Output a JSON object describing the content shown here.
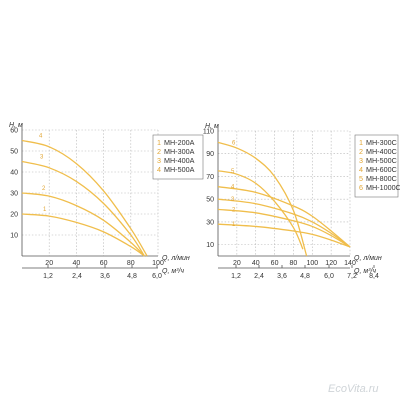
{
  "watermark": "EcoVita.ru",
  "colors": {
    "curve": "#f0be4c",
    "label": "#e2a634",
    "grid": "#b5b5b5",
    "axis": "#555555"
  },
  "chart_data": [
    {
      "type": "line",
      "ylabel": "H, м",
      "xlabel_flow": "Q, л/мин",
      "xlabel_flow_m3": "Q, м³/ч",
      "xlim": [
        0,
        100
      ],
      "ylim": [
        0,
        60
      ],
      "yticks": [
        10,
        20,
        30,
        40,
        50,
        60
      ],
      "xticks_flow": [
        20,
        40,
        60,
        80,
        100
      ],
      "xticks_m3": [
        "1,2",
        "2,4",
        "3,6",
        "4,8",
        "6,0"
      ],
      "legend_position": "right",
      "series": [
        {
          "name": "MH-200A",
          "num": "1",
          "x": [
            0,
            20,
            40,
            60,
            80,
            90
          ],
          "y": [
            20,
            19,
            16,
            11.5,
            4.5,
            0
          ]
        },
        {
          "name": "MH-300A",
          "num": "2",
          "x": [
            0,
            20,
            40,
            60,
            80,
            90
          ],
          "y": [
            30,
            28.5,
            24,
            17,
            6.5,
            0
          ]
        },
        {
          "name": "MH-400A",
          "num": "3",
          "x": [
            0,
            20,
            40,
            60,
            80,
            90
          ],
          "y": [
            45,
            42,
            35.5,
            25,
            10,
            0
          ]
        },
        {
          "name": "MH-500A",
          "num": "4",
          "x": [
            0,
            20,
            40,
            60,
            80,
            92
          ],
          "y": [
            55,
            52,
            44,
            31,
            13,
            0
          ]
        }
      ]
    },
    {
      "type": "line",
      "ylabel": "H, м",
      "xlabel_flow": "Q, л/мин",
      "xlabel_flow_m3": "Q, м³/ч",
      "xlim": [
        0,
        140
      ],
      "ylim": [
        0,
        110
      ],
      "yticks": [
        10,
        30,
        50,
        70,
        90,
        110
      ],
      "xticks_flow": [
        20,
        40,
        60,
        80,
        100,
        120,
        140
      ],
      "xticks_m3": [
        "1,2",
        "2,4",
        "3,6",
        "4,8",
        "6,0",
        "7,2",
        "8,4"
      ],
      "legend_position": "right",
      "series": [
        {
          "name": "MH-300C",
          "num": "1",
          "x": [
            0,
            40,
            80,
            100,
            120,
            140
          ],
          "y": [
            28,
            26,
            22,
            19,
            14,
            8
          ]
        },
        {
          "name": "MH-400C",
          "num": "2",
          "x": [
            0,
            40,
            80,
            100,
            120,
            140
          ],
          "y": [
            41,
            38,
            31,
            26,
            18,
            8
          ]
        },
        {
          "name": "MH-500C",
          "num": "3",
          "x": [
            0,
            40,
            80,
            100,
            120,
            140
          ],
          "y": [
            50,
            46,
            37,
            30,
            20,
            8
          ]
        },
        {
          "name": "MH-600C",
          "num": "4",
          "x": [
            0,
            40,
            80,
            100,
            120,
            140
          ],
          "y": [
            61,
            56,
            44,
            35,
            22,
            8
          ]
        },
        {
          "name": "MH-800C",
          "num": "5",
          "x": [
            0,
            20,
            40,
            60,
            80,
            90
          ],
          "y": [
            75,
            72,
            64,
            48,
            25,
            6
          ]
        },
        {
          "name": "MH-1000C",
          "num": "6",
          "x": [
            0,
            20,
            40,
            60,
            80,
            94
          ],
          "y": [
            100,
            95,
            86,
            70,
            40,
            0
          ]
        }
      ]
    }
  ]
}
